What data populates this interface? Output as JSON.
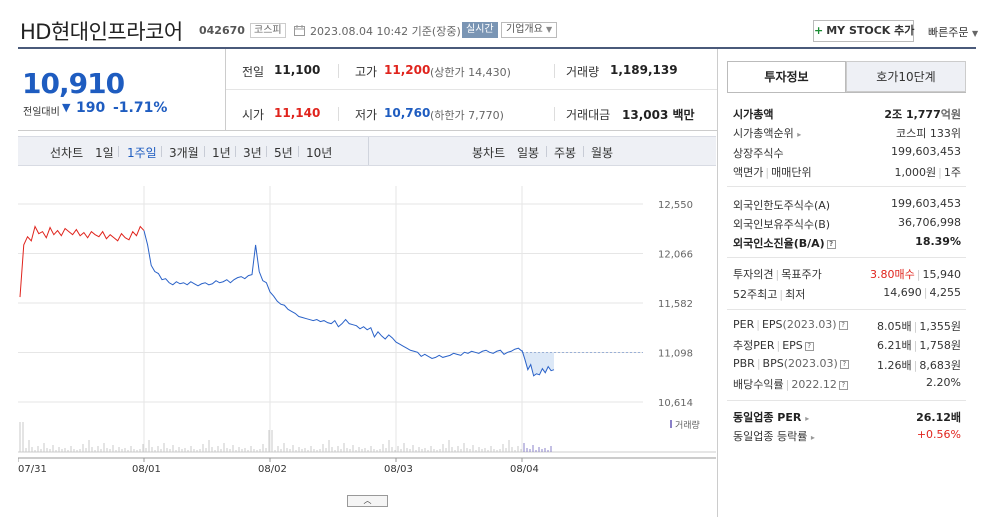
{
  "header": {
    "stock_name": "HD현대인프라코어",
    "stock_code": "042670",
    "market": "코스피",
    "date": "2023.08.04 10:42 기준(장중)",
    "realtime": "실시간",
    "company_overview": "기업개요",
    "mystock_label": "MY STOCK 추가",
    "quick_order": "빠른주문"
  },
  "summary": {
    "current_price": "10,910",
    "change_label": "전일대비",
    "change_amount": "190",
    "change_rate": "-1.71%",
    "prev_close_label": "전일",
    "prev_close": "11,100",
    "high_label": "고가",
    "high": "11,200",
    "upper_limit": "(상한가 14,430)",
    "volume_label": "거래량",
    "volume": "1,189,139",
    "open_label": "시가",
    "open": "11,140",
    "low_label": "저가",
    "low": "10,760",
    "lower_limit": "(하한가 7,770)",
    "amount_label": "거래대금",
    "amount": "13,003",
    "amount_unit": "백만"
  },
  "period_bar": {
    "line_label": "선차트",
    "periods": [
      "1일",
      "1주일",
      "3개월",
      "1년",
      "3년",
      "5년",
      "10년"
    ],
    "active": "1주일",
    "candle_label": "봉차트",
    "candles": [
      "일봉",
      "주봉",
      "월봉"
    ]
  },
  "chart_data": {
    "type": "line",
    "x_ticks": [
      "07/31",
      "08/01",
      "08/02",
      "08/03",
      "08/04"
    ],
    "y_ticks": [
      12550,
      12066,
      11582,
      11098,
      10614
    ],
    "ylim": [
      10614,
      12550
    ],
    "volume_legend": "거래량",
    "colors": {
      "up": "#e0241d",
      "down": "#2a62c8",
      "grid": "#e6e6e6"
    },
    "series": [
      {
        "segment": "07/31",
        "color": "red",
        "values": [
          11640,
          12150,
          12230,
          12190,
          12330,
          12260,
          12280,
          12220,
          12320,
          12250,
          12290,
          12240,
          12310,
          12280,
          12250,
          12300,
          12240,
          12270,
          12220,
          12280,
          12250,
          12230,
          12280,
          12210,
          12250,
          12220,
          12190,
          12260,
          12220,
          12200,
          12280,
          12240,
          12330,
          12290
        ]
      },
      {
        "segment": "08/01",
        "color": "blue",
        "values": [
          12290,
          12150,
          11950,
          11890,
          11870,
          11810,
          11820,
          11780,
          11760,
          11790,
          11770,
          11780,
          11760,
          11790,
          11770,
          11750,
          11770,
          11780,
          11760,
          11770,
          11800,
          11780,
          11790,
          11810,
          11780,
          11810,
          11830,
          11840,
          11820,
          11850,
          11860,
          12150,
          11890,
          11800,
          11780,
          11690,
          11650,
          11600,
          11570,
          11560,
          11520,
          11500,
          11480,
          11450,
          11440,
          11430,
          11420,
          11410,
          11420,
          11400,
          11410,
          11390,
          11380,
          11410,
          11350,
          11380,
          11420,
          11380,
          11370,
          11360,
          11330,
          11350,
          11320,
          11340,
          11250,
          11300,
          11260,
          11230,
          11270,
          11240,
          11200,
          11180,
          11160,
          11140,
          11120,
          11110,
          11100,
          11060,
          11080,
          11060,
          11040,
          11050,
          11070,
          11050,
          11060,
          11070,
          11090,
          11080,
          11070,
          11100,
          11090,
          11110,
          11100,
          11090,
          11110,
          11120,
          11100,
          11090,
          11110,
          11120,
          11080,
          11100,
          11110,
          11130,
          11140,
          11110
        ]
      },
      {
        "segment": "08/04",
        "color": "blue",
        "values": [
          11120,
          11030,
          10930,
          10980,
          10870,
          10890,
          10880,
          10940,
          10900,
          10960,
          10920,
          10930
        ]
      }
    ]
  },
  "right_panel": {
    "tabs": [
      "투자정보",
      "호가10단계"
    ],
    "market_cap_label": "시가총액",
    "market_cap": "2조 1,777",
    "market_cap_unit": "억원",
    "market_cap_rank_label": "시가총액순위",
    "market_cap_rank": "코스피 133위",
    "shares_label": "상장주식수",
    "shares": "199,603,453",
    "par_label": "액면가",
    "par_sep": "매매단위",
    "par_value": "1,000원",
    "par_unit_value": "1주",
    "foreign_limit_label": "외국인한도주식수(A)",
    "foreign_limit": "199,603,453",
    "foreign_hold_label": "외국인보유주식수(B)",
    "foreign_hold": "36,706,998",
    "foreign_rate_label": "외국인소진율(B/A)",
    "foreign_rate": "18.39%",
    "opinion_label": "투자의견",
    "target_label": "목표주가",
    "opinion": "3.80매수",
    "target": "15,940",
    "week52_label": "52주최고",
    "week52_low_label": "최저",
    "week52_high": "14,690",
    "week52_low": "4,255",
    "per_label": "PER",
    "eps_label": "EPS",
    "per_year": "(2023.03)",
    "per": "8.05배",
    "eps": "1,355원",
    "est_per_label": "추정PER",
    "est_eps_label": "EPS",
    "est_per": "6.21배",
    "est_eps": "1,758원",
    "pbr_label": "PBR",
    "bps_label": "BPS",
    "pbr_year": "(2023.03)",
    "pbr": "1.26배",
    "bps": "8,683원",
    "dividend_label": "배당수익률",
    "dividend_year": "2022.12",
    "dividend": "2.20%",
    "industry_per_label": "동일업종 PER",
    "industry_per": "26.12배",
    "industry_rate_label": "동일업종 등락률",
    "industry_rate": "+0.56%"
  }
}
